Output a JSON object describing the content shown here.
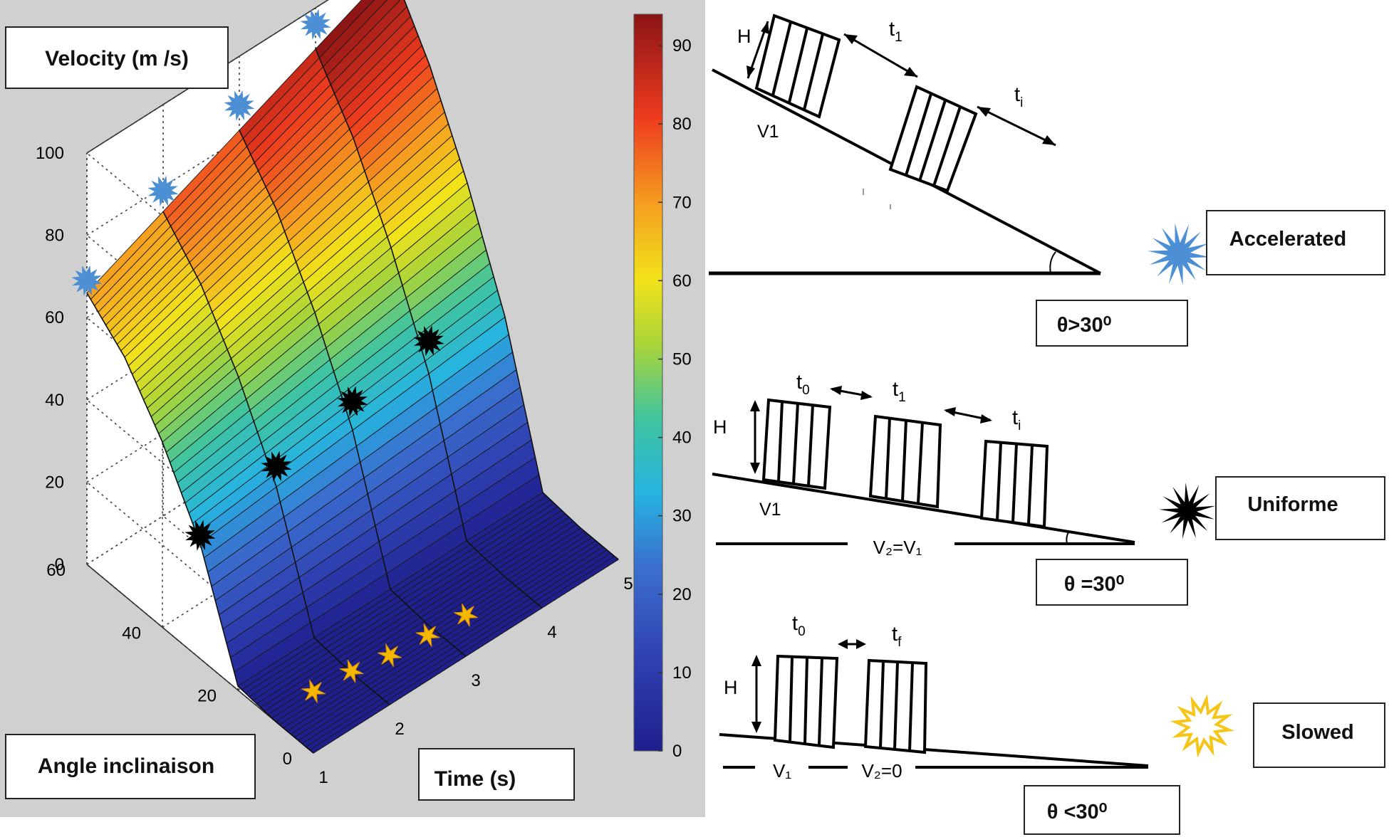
{
  "chart_data": {
    "type": "surface3d",
    "title": "",
    "zlabel": "Velocity (m /s)",
    "xlabel": "Time (s)",
    "ylabel": "Angle inclinaison",
    "x_ticks": [
      "1",
      "2",
      "3",
      "4",
      "5"
    ],
    "y_ticks": [
      "0",
      "20",
      "40",
      "60"
    ],
    "z_ticks": [
      "0",
      "20",
      "40",
      "60",
      "80",
      "100"
    ],
    "xlim": [
      1,
      5
    ],
    "ylim": [
      0,
      60
    ],
    "zlim": [
      0,
      100
    ],
    "colorbar": {
      "ticks": [
        "0",
        "10",
        "20",
        "30",
        "40",
        "50",
        "60",
        "70",
        "80",
        "90"
      ],
      "min": 0,
      "max": 94
    },
    "surface": {
      "time": [
        1,
        2,
        3,
        4,
        5
      ],
      "angle": [
        0,
        10,
        20,
        30,
        40,
        50,
        60
      ],
      "velocity_at_time_1": [
        0,
        0,
        1,
        28,
        45,
        58,
        66
      ],
      "velocity_increase_per_second": [
        0,
        0,
        0,
        2,
        4,
        6,
        8
      ]
    },
    "series": [
      {
        "name": "Accelerated",
        "color": "#4d8fd4",
        "time": [
          1,
          2,
          3,
          4
        ],
        "angle": [
          60,
          60,
          60,
          60
        ],
        "velocity": [
          69,
          79,
          88,
          96
        ]
      },
      {
        "name": "Uniforme",
        "color": "#000000",
        "time": [
          1,
          2,
          3,
          4
        ],
        "angle": [
          30,
          30,
          30,
          30
        ],
        "velocity": [
          30,
          35,
          39,
          42
        ]
      },
      {
        "name": "Slowed",
        "color": "#f5b800",
        "time": [
          1,
          1.5,
          2,
          2.5,
          3
        ],
        "angle": [
          0,
          0,
          0,
          0,
          0
        ],
        "velocity": [
          15,
          14,
          12,
          11,
          10
        ]
      }
    ]
  },
  "diagram": {
    "panels": [
      {
        "state": "Accelerated",
        "angle": "θ>30⁰",
        "icon_color": "#4d8fd4",
        "h_label": "H",
        "v_label": "V1",
        "time_labels": [
          "t",
          "t"
        ],
        "time_subs": [
          "1",
          "i"
        ],
        "speed_labels": []
      },
      {
        "state": "Uniforme",
        "angle": "θ =30⁰",
        "icon_color": "#000000",
        "h_label": "H",
        "v_label": "V1",
        "time_labels": [
          "t",
          "t",
          "t"
        ],
        "time_subs": [
          "0",
          "1",
          "i"
        ],
        "speed_labels": [
          "V₂=V₁"
        ]
      },
      {
        "state": "Slowed",
        "angle": "θ <30⁰",
        "icon_color": "#f5c518",
        "h_label": "H",
        "v_label": "",
        "time_labels": [
          "t",
          "t"
        ],
        "time_subs": [
          "0",
          "f"
        ],
        "speed_labels": [
          "V₁",
          "V₂=0"
        ]
      }
    ]
  }
}
